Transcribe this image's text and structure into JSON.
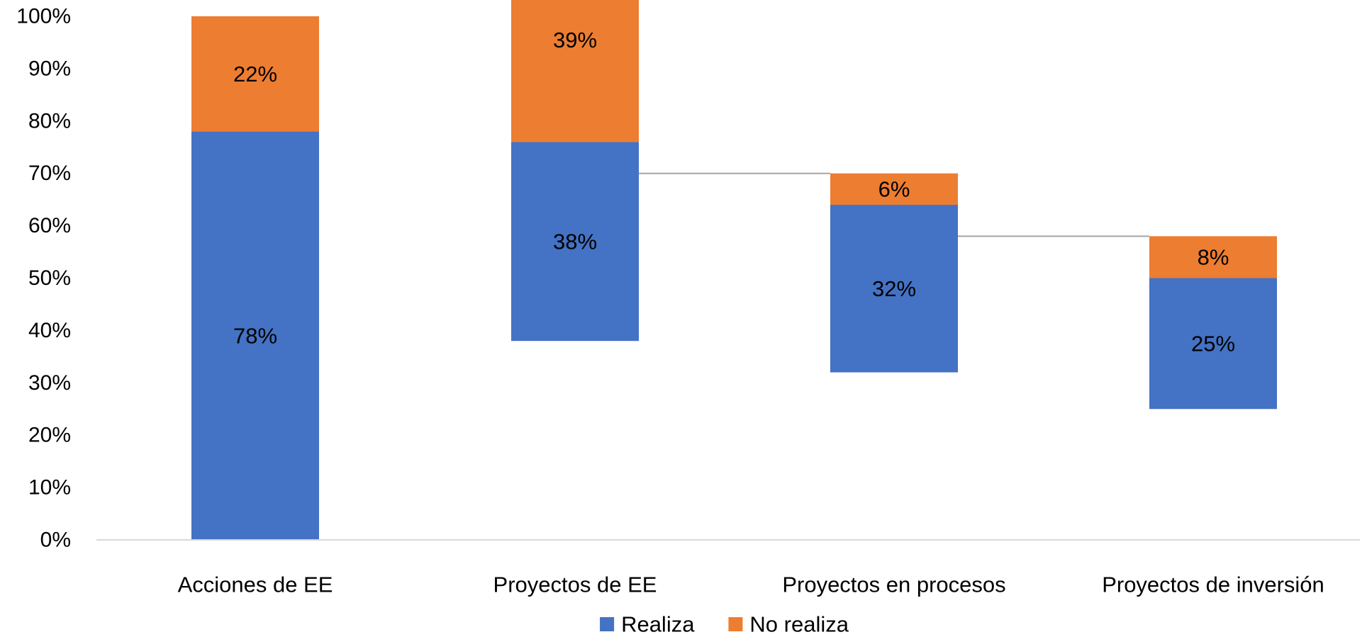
{
  "chart_data": {
    "type": "bar",
    "stacked": true,
    "title": "",
    "xlabel": "",
    "ylabel": "",
    "categories": [
      "Acciones de EE",
      "Proyectos de EE",
      "Proyectos en procesos",
      "Proyectos de inversión"
    ],
    "offsets": [
      0,
      38,
      32,
      25
    ],
    "series": [
      {
        "name": "Realiza",
        "values": [
          78,
          38,
          32,
          25
        ],
        "labels": [
          "78%",
          "38%",
          "32%",
          "25%"
        ],
        "color": "#4472C4"
      },
      {
        "name": "No realiza",
        "values": [
          22,
          39,
          6,
          8
        ],
        "labels": [
          "22%",
          "39%",
          "6%",
          "8%"
        ],
        "color": "#ED7D31"
      }
    ],
    "connector_lines": true,
    "connector_color": "#A5A5A5",
    "ylim": [
      0,
      100
    ],
    "yticks": [
      0,
      10,
      20,
      30,
      40,
      50,
      60,
      70,
      80,
      90,
      100
    ],
    "ytick_labels": [
      "0%",
      "10%",
      "20%",
      "30%",
      "40%",
      "50%",
      "60%",
      "70%",
      "80%",
      "90%",
      "100%"
    ],
    "grid": false,
    "legend_position": "bottom",
    "axis_color": "#D9D9D9",
    "text_color": "#000000"
  }
}
